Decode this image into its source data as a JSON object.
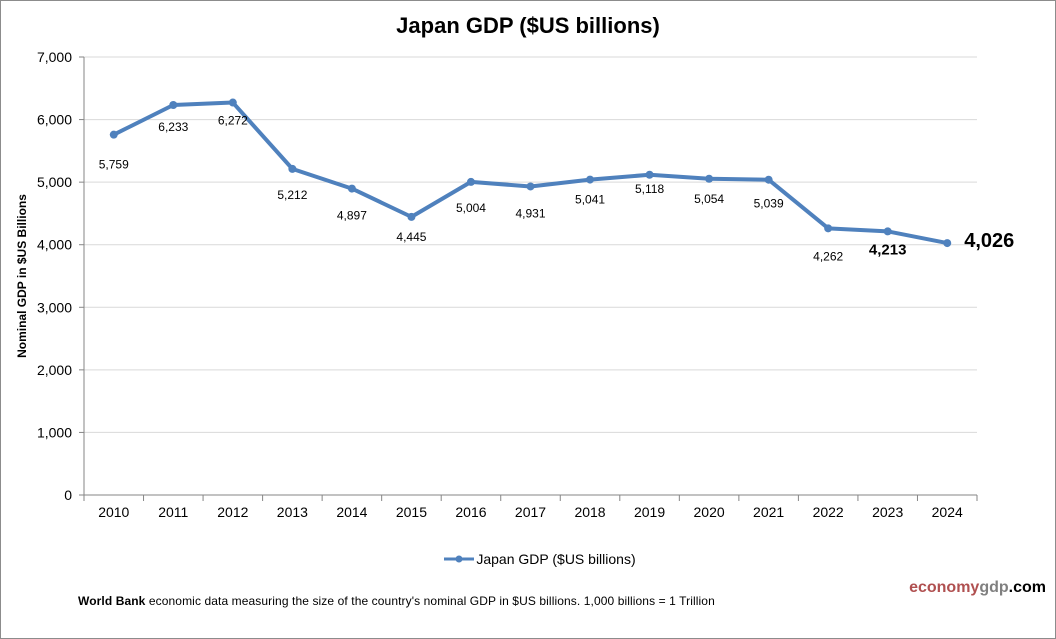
{
  "chart_data": {
    "type": "line",
    "title": "Japan GDP ($US billions)",
    "xlabel": "",
    "ylabel": "Nominal GDP in $US Billions",
    "categories": [
      "2010",
      "2011",
      "2012",
      "2013",
      "2014",
      "2015",
      "2016",
      "2017",
      "2018",
      "2019",
      "2020",
      "2021",
      "2022",
      "2023",
      "2024"
    ],
    "series": [
      {
        "name": "Japan GDP ($US billions)",
        "color": "#4f81bd",
        "values": [
          5759,
          6233,
          6272,
          5212,
          4897,
          4445,
          5004,
          4931,
          5041,
          5118,
          5054,
          5039,
          4262,
          4213,
          4026
        ],
        "data_labels": [
          "5,759",
          "6,233",
          "6,272",
          "5,212",
          "4,897",
          "4,445",
          "5,004",
          "4,931",
          "5,041",
          "5,118",
          "5,054",
          "5,039",
          "4,262",
          "4,213",
          "4,026"
        ]
      }
    ],
    "ylim": [
      0,
      7000
    ],
    "yticks": [
      0,
      1000,
      2000,
      3000,
      4000,
      5000,
      6000,
      7000
    ],
    "ytick_labels": [
      "0",
      "1,000",
      "2,000",
      "3,000",
      "4,000",
      "5,000",
      "6,000",
      "7,000"
    ],
    "grid": true,
    "legend_position": "bottom"
  },
  "footnote": {
    "source_bold": "World Bank",
    "text": " economic data  measuring the size of the country's nominal GDP in $US billions. 1,000 billions = 1 Trillion"
  },
  "brand": {
    "part1": "economy",
    "part2": "gdp",
    "part3": ".com"
  }
}
